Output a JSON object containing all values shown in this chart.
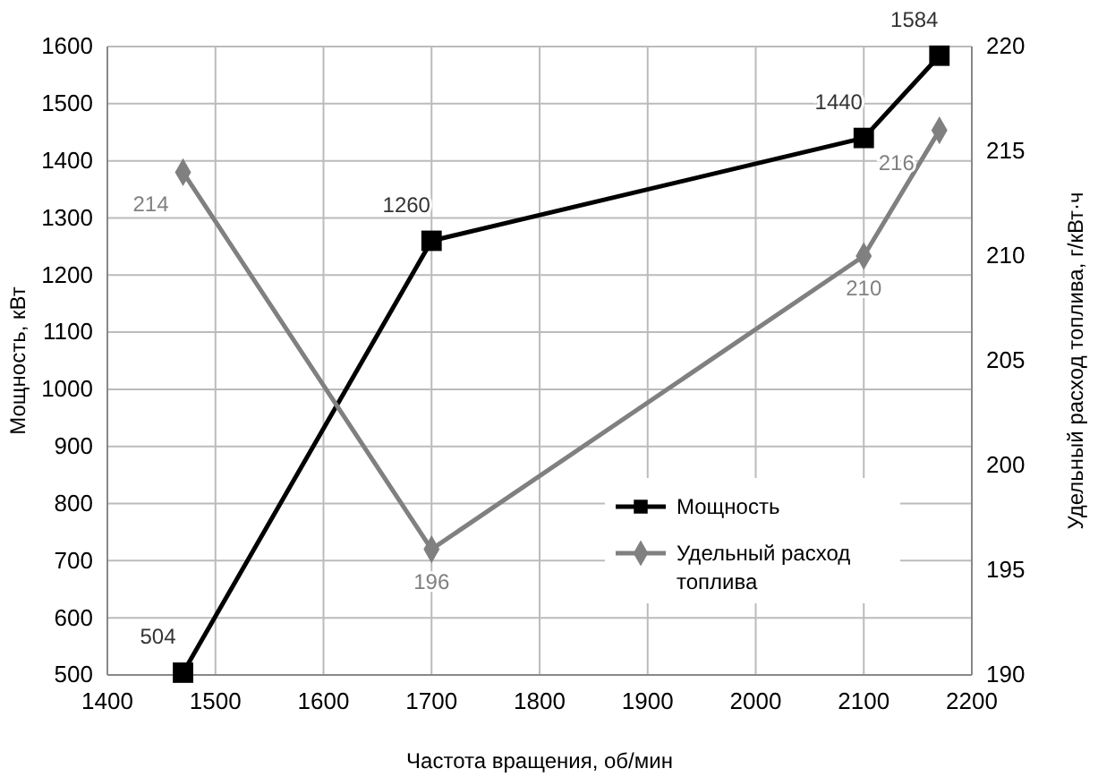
{
  "chart_data": {
    "type": "line",
    "xlabel": "Частота вращения, об/мин",
    "ylabel": "Мощность, кВт",
    "y2label": "Удельный расход топлива, г/кВт·ч",
    "x": [
      1470,
      1700,
      2100,
      2170
    ],
    "series": [
      {
        "name": "Мощность",
        "color": "#000000",
        "marker": "square",
        "values": [
          504,
          1260,
          1440,
          1584
        ]
      },
      {
        "name": "Удельный расход топлива",
        "color": "#808080",
        "marker": "diamond",
        "axis": "y2",
        "values": [
          214,
          196,
          210,
          216
        ]
      }
    ],
    "xlim": [
      1400,
      2200
    ],
    "xticks": [
      1400,
      1500,
      1600,
      1700,
      1800,
      1900,
      2000,
      2100,
      2200
    ],
    "ylim": [
      500,
      1600
    ],
    "yticks": [
      500,
      600,
      700,
      800,
      900,
      1000,
      1100,
      1200,
      1300,
      1400,
      1500,
      1600
    ],
    "y2lim": [
      190,
      220
    ],
    "y2ticks": [
      190,
      195,
      200,
      205,
      210,
      215,
      220
    ],
    "grid": true,
    "legend": "bottom right",
    "data_labels": true,
    "line_style": "solid"
  }
}
